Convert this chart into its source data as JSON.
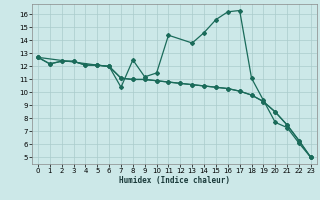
{
  "xlabel": "Humidex (Indice chaleur)",
  "bg_color": "#cce8e8",
  "grid_color": "#aacccc",
  "line_color": "#1a6b5a",
  "xlim": [
    -0.5,
    23.5
  ],
  "ylim": [
    4.5,
    16.8
  ],
  "xticks": [
    0,
    1,
    2,
    3,
    4,
    5,
    6,
    7,
    8,
    9,
    10,
    11,
    12,
    13,
    14,
    15,
    16,
    17,
    18,
    19,
    20,
    21,
    22,
    23
  ],
  "yticks": [
    5,
    6,
    7,
    8,
    9,
    10,
    11,
    12,
    13,
    14,
    15,
    16
  ],
  "line1_x": [
    0,
    1,
    2,
    3,
    4,
    5,
    6,
    7,
    8,
    9,
    10,
    11,
    12,
    13,
    14,
    15,
    16,
    17,
    18,
    19,
    20,
    21,
    22,
    23
  ],
  "line1_y": [
    12.7,
    12.2,
    12.4,
    12.4,
    12.1,
    12.1,
    12.0,
    11.1,
    11.0,
    11.0,
    10.9,
    10.8,
    10.7,
    10.6,
    10.5,
    10.4,
    10.3,
    10.1,
    9.8,
    9.3,
    8.5,
    7.5,
    6.3,
    5.0
  ],
  "line2_x": [
    0,
    1,
    2,
    3,
    4,
    5,
    6,
    7,
    8,
    9,
    10,
    11,
    13,
    14,
    15,
    16,
    17,
    18,
    19,
    20,
    21,
    22,
    23
  ],
  "line2_y": [
    12.7,
    12.2,
    12.4,
    12.4,
    12.1,
    12.1,
    12.0,
    10.4,
    12.5,
    11.2,
    11.5,
    14.4,
    13.8,
    14.6,
    15.6,
    16.2,
    16.3,
    11.1,
    9.4,
    7.7,
    7.3,
    6.1,
    5.0
  ],
  "line3_x": [
    0,
    5,
    6,
    7,
    8,
    9,
    10,
    11,
    12,
    13,
    14,
    15,
    16,
    17,
    18,
    19,
    20,
    21,
    22,
    23
  ],
  "line3_y": [
    12.7,
    12.1,
    12.0,
    11.1,
    11.0,
    11.0,
    10.9,
    10.8,
    10.7,
    10.6,
    10.5,
    10.4,
    10.3,
    10.1,
    9.8,
    9.3,
    8.5,
    7.5,
    6.3,
    5.0
  ]
}
